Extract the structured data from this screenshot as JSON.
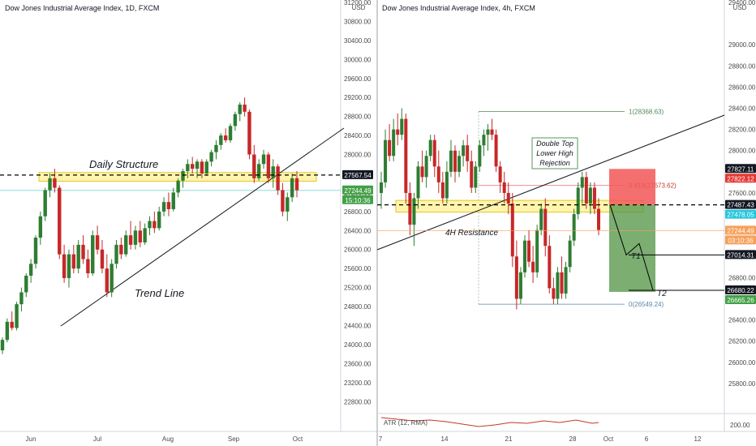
{
  "colors": {
    "up": "#2e7d32",
    "down": "#c62828",
    "zone_fill": "#fff4a3",
    "zone_stroke": "#e0b700",
    "trend": "#131722",
    "cyan_line": "#7fd8d0",
    "tag_dark": "#131722",
    "tag_red": "#e53935",
    "tag_green": "#43a047",
    "tag_cyan": "#26c6da",
    "tag_orange": "#f5a15b",
    "tp_green": "#5a9a4c",
    "sl_red": "#f25757",
    "atr_line": "#c0392b"
  },
  "chart_data": [
    {
      "type": "candlestick",
      "title": "Dow Jones Industrial Average Index, 1D, FXCM",
      "currency": "USD",
      "ylim": [
        22600,
        31200
      ],
      "y_ticks": [
        {
          "v": 31200,
          "label": "31200.00"
        },
        {
          "v": 30800,
          "label": "30800.00"
        },
        {
          "v": 30400,
          "label": "30400.00"
        },
        {
          "v": 30000,
          "label": "30000.00"
        },
        {
          "v": 29600,
          "label": "29600.00"
        },
        {
          "v": 29200,
          "label": "29200.00"
        },
        {
          "v": 28800,
          "label": "28800.00"
        },
        {
          "v": 28400,
          "label": "28400.00"
        },
        {
          "v": 28000,
          "label": "28000.00"
        },
        {
          "v": 27200,
          "label": "27200.00"
        },
        {
          "v": 26800,
          "label": "26800.00"
        },
        {
          "v": 26400,
          "label": "26400.00"
        },
        {
          "v": 26000,
          "label": "26000.00"
        },
        {
          "v": 25600,
          "label": "25600.00"
        },
        {
          "v": 25200,
          "label": "25200.00"
        },
        {
          "v": 24800,
          "label": "24800.00"
        },
        {
          "v": 24400,
          "label": "24400.00"
        },
        {
          "v": 24000,
          "label": "24000.00"
        },
        {
          "v": 23600,
          "label": "23600.00"
        },
        {
          "v": 23200,
          "label": "23200.00"
        },
        {
          "v": 22800,
          "label": "22800.00"
        }
      ],
      "x_ticks": [
        "Jun",
        "Jul",
        "Aug",
        "Sep",
        "Oct"
      ],
      "zone": {
        "top": 27620,
        "bottom": 27440,
        "label": "Daily Structure"
      },
      "dashed_level": 27567.54,
      "cyan_level": 27244.49,
      "trend_label": "Trend Line",
      "price_tags": [
        {
          "label": "27567.54",
          "kind": "dark"
        },
        {
          "label": "27244.49",
          "kind": "green"
        },
        {
          "label": "15:10:36",
          "kind": "green"
        }
      ],
      "candles": [
        [
          23880,
          24150,
          23800,
          24100
        ],
        [
          24100,
          24550,
          24050,
          24480
        ],
        [
          24480,
          24700,
          24300,
          24350
        ],
        [
          24350,
          24900,
          24300,
          24850
        ],
        [
          24850,
          25200,
          24700,
          25100
        ],
        [
          25100,
          25500,
          25000,
          25450
        ],
        [
          25450,
          25800,
          25300,
          25700
        ],
        [
          25700,
          26300,
          25600,
          26250
        ],
        [
          26250,
          26800,
          26100,
          26700
        ],
        [
          26700,
          27300,
          26600,
          27250
        ],
        [
          27250,
          27600,
          27100,
          27500
        ],
        [
          27500,
          27700,
          27200,
          27300
        ],
        [
          27300,
          27350,
          25800,
          25900
        ],
        [
          25900,
          26100,
          25300,
          25400
        ],
        [
          25400,
          26000,
          25200,
          25900
        ],
        [
          25900,
          26100,
          25500,
          25600
        ],
        [
          25600,
          26200,
          25500,
          26100
        ],
        [
          26100,
          26300,
          25700,
          25800
        ],
        [
          25800,
          26000,
          25400,
          25500
        ],
        [
          25500,
          26400,
          25450,
          26300
        ],
        [
          26300,
          26500,
          25900,
          26000
        ],
        [
          26000,
          26200,
          25500,
          25600
        ],
        [
          25600,
          25900,
          25000,
          25100
        ],
        [
          25100,
          25800,
          25000,
          25700
        ],
        [
          25700,
          26200,
          25600,
          26100
        ],
        [
          26100,
          26250,
          25800,
          25900
        ],
        [
          25900,
          26400,
          25850,
          26300
        ],
        [
          26300,
          26600,
          26000,
          26100
        ],
        [
          26100,
          26500,
          26000,
          26400
        ],
        [
          26400,
          26600,
          26050,
          26150
        ],
        [
          26150,
          26550,
          26100,
          26450
        ],
        [
          26450,
          26700,
          26300,
          26600
        ],
        [
          26600,
          26800,
          26350,
          26450
        ],
        [
          26450,
          26900,
          26400,
          26800
        ],
        [
          26800,
          27100,
          26700,
          27000
        ],
        [
          27000,
          27200,
          26700,
          26850
        ],
        [
          26850,
          27300,
          26800,
          27200
        ],
        [
          27200,
          27500,
          27100,
          27450
        ],
        [
          27450,
          27700,
          27300,
          27650
        ],
        [
          27650,
          27900,
          27500,
          27800
        ],
        [
          27800,
          27950,
          27600,
          27700
        ],
        [
          27700,
          27900,
          27500,
          27850
        ],
        [
          27850,
          27900,
          27500,
          27600
        ],
        [
          27600,
          27900,
          27550,
          27850
        ],
        [
          27850,
          28100,
          27750,
          28050
        ],
        [
          28050,
          28300,
          27900,
          28200
        ],
        [
          28200,
          28450,
          28100,
          28400
        ],
        [
          28400,
          28550,
          28250,
          28300
        ],
        [
          28300,
          28650,
          28250,
          28600
        ],
        [
          28600,
          28900,
          28500,
          28850
        ],
        [
          28850,
          29100,
          28700,
          29050
        ],
        [
          29050,
          29200,
          28800,
          28900
        ],
        [
          28900,
          28950,
          27900,
          28000
        ],
        [
          28000,
          28200,
          27400,
          27500
        ],
        [
          27500,
          27900,
          27450,
          27800
        ],
        [
          27800,
          28100,
          27700,
          28000
        ],
        [
          28000,
          28050,
          27400,
          27500
        ],
        [
          27500,
          27900,
          27300,
          27750
        ],
        [
          27750,
          27800,
          27150,
          27250
        ],
        [
          27250,
          27400,
          26700,
          26800
        ],
        [
          26800,
          27200,
          26600,
          27100
        ],
        [
          27100,
          27600,
          27000,
          27500
        ],
        [
          27500,
          27650,
          27100,
          27250
        ]
      ]
    },
    {
      "type": "candlestick",
      "title": "Dow Jones Industrial Average Index, 4h, FXCM",
      "currency": "USD",
      "ylim": [
        25800,
        29400
      ],
      "y_ticks": [
        {
          "v": 29400,
          "label": "29400.00"
        },
        {
          "v": 29000,
          "label": "29000.00"
        },
        {
          "v": 28800,
          "label": "28800.00"
        },
        {
          "v": 28600,
          "label": "28600.00"
        },
        {
          "v": 28400,
          "label": "28400.00"
        },
        {
          "v": 28200,
          "label": "28200.00"
        },
        {
          "v": 28000,
          "label": "28000.00"
        },
        {
          "v": 27600,
          "label": "27600.00"
        },
        {
          "v": 27400,
          "label": "27400.00"
        },
        {
          "v": 26800,
          "label": "26800.00"
        },
        {
          "v": 26400,
          "label": "26400.00"
        },
        {
          "v": 26200,
          "label": "26200.00"
        },
        {
          "v": 26000,
          "label": "26000.00"
        },
        {
          "v": 25800,
          "label": "25800.00"
        }
      ],
      "x_ticks": [
        "7",
        "14",
        "21",
        "28",
        "Oct",
        "6",
        "12"
      ],
      "zone": {
        "top": 27530,
        "bottom": 27420,
        "label": "4H Resistance"
      },
      "dashed_level": 27487.43,
      "fib": [
        {
          "label": "1(28368.63)",
          "v": 28368.63
        },
        {
          "label": "0.618(27673.62)",
          "v": 27673.62
        },
        {
          "label": "0(26549.24)",
          "v": 26549.24
        }
      ],
      "position": {
        "stop": 27827.11,
        "entry": 27487.43,
        "target": 26665.26
      },
      "targets": [
        {
          "label": "T1",
          "v": 27014.31
        },
        {
          "label": "T2",
          "v": 26680.22
        }
      ],
      "pattern_label": [
        "Double Top",
        "Lower High",
        "Rejection"
      ],
      "price_tags": [
        {
          "label": "27827.11",
          "kind": "dark"
        },
        {
          "label": "27822.12",
          "kind": "red"
        },
        {
          "label": "27487.43",
          "kind": "dark"
        },
        {
          "label": "27478.05",
          "kind": "cyan"
        },
        {
          "label": "27244.49",
          "kind": "orange"
        },
        {
          "label": "03:10:36",
          "kind": "orange"
        },
        {
          "label": "27014.31",
          "kind": "dark"
        },
        {
          "label": "26680.22",
          "kind": "dark"
        },
        {
          "label": "26665.26",
          "kind": "green"
        }
      ],
      "atr": {
        "label": "ATR (12, RMA)",
        "tick": "200.00"
      },
      "candles": [
        [
          27600,
          27800,
          27450,
          27700
        ],
        [
          27700,
          28200,
          27650,
          28100
        ],
        [
          28100,
          28250,
          27900,
          27950
        ],
        [
          27950,
          28300,
          27900,
          28200
        ],
        [
          28200,
          28350,
          28050,
          28150
        ],
        [
          28150,
          28400,
          28100,
          28300
        ],
        [
          28300,
          28350,
          27500,
          27600
        ],
        [
          27600,
          27700,
          27200,
          27300
        ],
        [
          27300,
          27600,
          27100,
          27550
        ],
        [
          27550,
          27900,
          27450,
          27850
        ],
        [
          27850,
          28000,
          27700,
          27750
        ],
        [
          27750,
          28000,
          27650,
          27950
        ],
        [
          27950,
          28150,
          27900,
          28100
        ],
        [
          28100,
          28150,
          27750,
          27850
        ],
        [
          27850,
          28000,
          27600,
          27700
        ],
        [
          27700,
          27800,
          27500,
          27550
        ],
        [
          27550,
          27900,
          27500,
          27800
        ],
        [
          27800,
          28100,
          27750,
          28000
        ],
        [
          28000,
          28050,
          27700,
          27800
        ],
        [
          27800,
          28000,
          27750,
          27950
        ],
        [
          27950,
          28100,
          27850,
          28050
        ],
        [
          28050,
          28150,
          27800,
          27900
        ],
        [
          27900,
          28000,
          27600,
          27650
        ],
        [
          27650,
          27900,
          27600,
          27850
        ],
        [
          27850,
          28100,
          27800,
          28050
        ],
        [
          28050,
          28200,
          27950,
          28150
        ],
        [
          28150,
          28250,
          28000,
          28200
        ],
        [
          28200,
          28300,
          28100,
          28150
        ],
        [
          28150,
          28200,
          27800,
          27850
        ],
        [
          27850,
          27900,
          27600,
          27700
        ],
        [
          27700,
          27800,
          27500,
          27600
        ],
        [
          27600,
          27700,
          27400,
          27500
        ],
        [
          27500,
          27600,
          26900,
          27000
        ],
        [
          27000,
          27150,
          26500,
          26600
        ],
        [
          26600,
          26900,
          26550,
          26850
        ],
        [
          26850,
          27200,
          26800,
          27150
        ],
        [
          27150,
          27250,
          26900,
          26950
        ],
        [
          26950,
          27100,
          26750,
          26850
        ],
        [
          26850,
          27300,
          26800,
          27250
        ],
        [
          27250,
          27500,
          27200,
          27450
        ],
        [
          27450,
          27550,
          27000,
          27100
        ],
        [
          27100,
          27200,
          26650,
          26700
        ],
        [
          26700,
          26800,
          26550,
          26600
        ],
        [
          26600,
          26900,
          26550,
          26850
        ],
        [
          26850,
          27000,
          26600,
          26650
        ],
        [
          26650,
          26950,
          26600,
          26900
        ],
        [
          26900,
          27200,
          26850,
          27150
        ],
        [
          27150,
          27450,
          27100,
          27400
        ],
        [
          27400,
          27700,
          27350,
          27650
        ],
        [
          27650,
          27800,
          27500,
          27750
        ],
        [
          27750,
          27800,
          27450,
          27500
        ],
        [
          27500,
          27700,
          27400,
          27650
        ],
        [
          27650,
          27700,
          27400,
          27450
        ],
        [
          27450,
          27550,
          27200,
          27250
        ]
      ]
    }
  ]
}
